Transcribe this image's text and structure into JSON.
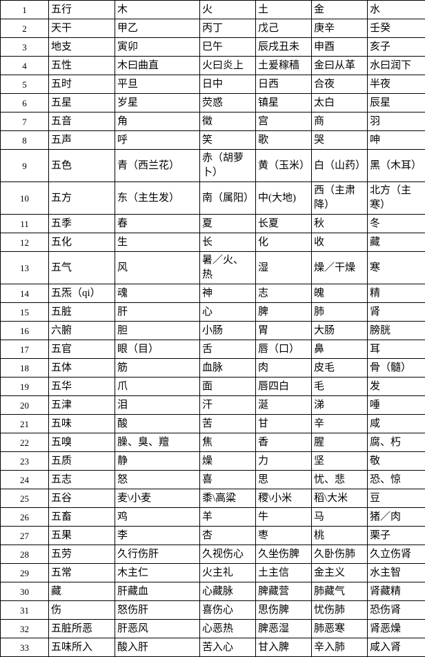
{
  "table": {
    "rows": [
      [
        "1",
        "五行",
        "木",
        "火",
        "土",
        "金",
        "水"
      ],
      [
        "2",
        "天干",
        "甲乙",
        "丙丁",
        "戊己",
        "庚辛",
        "壬癸"
      ],
      [
        "3",
        "地支",
        "寅卯",
        "巳午",
        "辰戌丑未",
        "申酉",
        "亥子"
      ],
      [
        "4",
        "五性",
        "木曰曲直",
        "火曰炎上",
        "土爰稼穑",
        "金曰从革",
        "水曰润下"
      ],
      [
        "5",
        "五时",
        "平旦",
        "日中",
        "日西",
        "合夜",
        "半夜"
      ],
      [
        "6",
        "五星",
        "岁星",
        "荧惑",
        "镇星",
        "太白",
        "辰星"
      ],
      [
        "7",
        "五音",
        "角",
        "徵",
        "宫",
        "商",
        "羽"
      ],
      [
        "8",
        "五声",
        "呼",
        "笑",
        "歌",
        "哭",
        "呻"
      ],
      [
        "9",
        "五色",
        "青（西兰花）",
        "赤（胡萝卜）",
        "黄（玉米）",
        "白（山药）",
        "黑（木耳）"
      ],
      [
        "10",
        "五方",
        "东（主生发）",
        "南（属阳）",
        "中(大地)",
        "西（主肃降）",
        "北方（主寒）"
      ],
      [
        "11",
        "五季",
        "春",
        "夏",
        "长夏",
        "秋",
        "冬"
      ],
      [
        "12",
        "五化",
        "生",
        "长",
        "化",
        "收",
        "藏"
      ],
      [
        "13",
        "五气",
        "风",
        "暑／火、热",
        "湿",
        "燥／干燥",
        "寒"
      ],
      [
        "14",
        "五炁（qi）",
        "魂",
        "神",
        "志",
        "魄",
        "精"
      ],
      [
        "15",
        "五脏",
        "肝",
        "心",
        "脾",
        "肺",
        "肾"
      ],
      [
        "16",
        "六腑",
        "胆",
        "小肠",
        "胃",
        "大肠",
        "膀胱"
      ],
      [
        "17",
        "五官",
        "眼（目）",
        "舌",
        "唇（口）",
        "鼻",
        "耳"
      ],
      [
        "18",
        "五体",
        "筋",
        "血脉",
        "肉",
        "皮毛",
        "骨（髓）"
      ],
      [
        "19",
        "五华",
        "爪",
        "面",
        "唇四白",
        "毛",
        "发"
      ],
      [
        "20",
        "五津",
        "泪",
        "汗",
        "涎",
        "涕",
        "唾"
      ],
      [
        "21",
        "五味",
        "酸",
        "苦",
        "甘",
        "辛",
        "咸"
      ],
      [
        "22",
        "五嗅",
        "臊、臭、羶",
        "焦",
        "香",
        "腥",
        "腐、朽"
      ],
      [
        "23",
        "五质",
        "静",
        "燥",
        "力",
        "坚",
        "敬"
      ],
      [
        "24",
        "五志",
        "怒",
        "喜",
        "思",
        "忧、悲",
        "恐、惊"
      ],
      [
        "25",
        "五谷",
        "麦\\小麦",
        "黍\\高粱",
        "稷\\小米",
        "稻\\大米",
        "豆"
      ],
      [
        "26",
        "五畜",
        "鸡",
        "羊",
        "牛",
        "马",
        "猪／肉"
      ],
      [
        "27",
        "五果",
        "李",
        "杏",
        "枣",
        "桃",
        "栗子"
      ],
      [
        "28",
        "五劳",
        "久行伤肝",
        "久视伤心",
        "久坐伤脾",
        "久卧伤肺",
        "久立伤肾"
      ],
      [
        "29",
        "五常",
        "木主仁",
        "火主礼",
        "土主信",
        "金主义",
        "水主智"
      ],
      [
        "30",
        "藏",
        "肝藏血",
        "心藏脉",
        "脾藏营",
        "肺藏气",
        "肾藏精"
      ],
      [
        "31",
        "伤",
        "怒伤肝",
        "喜伤心",
        "思伤脾",
        "忧伤肺",
        "恐伤肾"
      ],
      [
        "32",
        "五脏所恶",
        "肝恶风",
        "心恶热",
        "脾恶湿",
        "肺恶寒",
        "肾恶燥"
      ],
      [
        "33",
        "五味所入",
        "酸入肝",
        "苦入心",
        "甘入脾",
        "辛入肺",
        "咸入肾"
      ]
    ]
  }
}
